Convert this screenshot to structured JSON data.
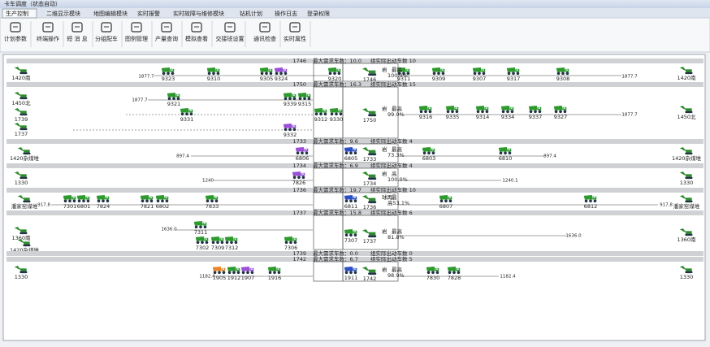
{
  "window_title": "卡车调度（状态自动）",
  "tabs": [
    "生产控制",
    "二维显示模块",
    "地图编辑模块",
    "实时报警",
    "实时故障与维修模块",
    "钻机计划",
    "操作日志",
    "登录权限"
  ],
  "toolbar": [
    "计划参数",
    "终端操作",
    "短 消 息",
    "分组配车",
    "图例管理",
    "产量查询",
    "模拟查看",
    "交接班设置",
    "通讯检查",
    "实时属性"
  ],
  "lanes": [
    {
      "shovel": "1746",
      "demand": "最大需求车数：10.0",
      "actual": "组实际出动车数 10",
      "left_sites": [
        "1420南"
      ],
      "right_sites": [
        "1420南"
      ],
      "distances": [
        "1877.7",
        "1877.7"
      ],
      "trucks": [
        "9323",
        "9310",
        "9305",
        "9324",
        "9320",
        "9311",
        "9309",
        "9307",
        "9317",
        "9308"
      ],
      "shovel_status": [
        "岩",
        "最高",
        "100.0%"
      ]
    },
    {
      "shovel": "1750",
      "demand": "最大需求车数：16.3",
      "actual": "组实际出动车数 15",
      "left_sites": [
        "1450北",
        "1739",
        "1737"
      ],
      "right_sites": [
        "1450北"
      ],
      "distances": [
        "1877.7",
        "1877.7"
      ],
      "trucks": [
        "9321",
        "9339",
        "9315",
        "9331",
        "9332",
        "9312",
        "9330",
        "9316",
        "9335",
        "9314",
        "9334",
        "9337",
        "9327"
      ],
      "shovel_status": [
        "岩",
        "最高",
        "99.0%"
      ]
    },
    {
      "shovel": "1733",
      "demand": "最大需求车数：9.6",
      "actual": "组实际出动车数 4",
      "left_sites": [
        "1420杂煤堆"
      ],
      "right_sites": [
        "1420杂煤堆"
      ],
      "distances": [
        "897.4",
        "897.4"
      ],
      "trucks": [
        "6806",
        "6805",
        "6803",
        "6810"
      ],
      "shovel_status": [
        "岩",
        "最高",
        "73.3%"
      ]
    },
    {
      "shovel": "1734",
      "demand": "最大需求车数：6.9",
      "actual": "组实际出动车数 4",
      "left_sites": [
        "1330"
      ],
      "right_sites": [
        "1330"
      ],
      "distances": [
        "1240",
        "1240.1"
      ],
      "trucks": [
        "7826"
      ],
      "shovel_status": [
        "岩",
        "高",
        "100.0%"
      ]
    },
    {
      "shovel": "1736",
      "demand": "最大需求车数：19.7",
      "actual": "组实际出动车数 10",
      "left_sites": [
        "潘家窑煤堆"
      ],
      "right_sites": [
        "潘家窑煤堆"
      ],
      "distances": [
        "917.8",
        "917.8"
      ],
      "trucks": [
        "7301",
        "6801",
        "7824",
        "7821",
        "6802",
        "7833",
        "6811",
        "6807",
        "6812"
      ],
      "shovel_status": [
        "球再",
        "最",
        "高53.1%"
      ]
    },
    {
      "shovel": "1737",
      "demand": "最大需求车数：15.8",
      "actual": "组实际出动车数 6",
      "left_sites": [
        "1360南",
        "1420杂煤堆"
      ],
      "right_sites": [
        "1360南"
      ],
      "distances": [
        "1636.0",
        "1636.0"
      ],
      "trucks": [
        "7311",
        "7302",
        "7309",
        "7312",
        "7306",
        "7307"
      ],
      "shovel_status": [
        "岩",
        "最高",
        "81.8%"
      ]
    },
    {
      "shovel": "1739",
      "demand": "最大需求车数：0.0",
      "actual": "组实际出动车数 0"
    },
    {
      "shovel": "1742",
      "demand": "最大需求车数：6.7",
      "actual": "组实际出动车数 5",
      "left_sites": [
        "1330"
      ],
      "right_sites": [
        "1330"
      ],
      "distances": [
        "1182.4",
        "1182.4"
      ],
      "trucks": [
        "1905",
        "1912",
        "1907",
        "1916",
        "1911",
        "7830",
        "7828"
      ],
      "shovel_status": [
        "岩",
        "最高",
        "98.9%"
      ]
    }
  ]
}
